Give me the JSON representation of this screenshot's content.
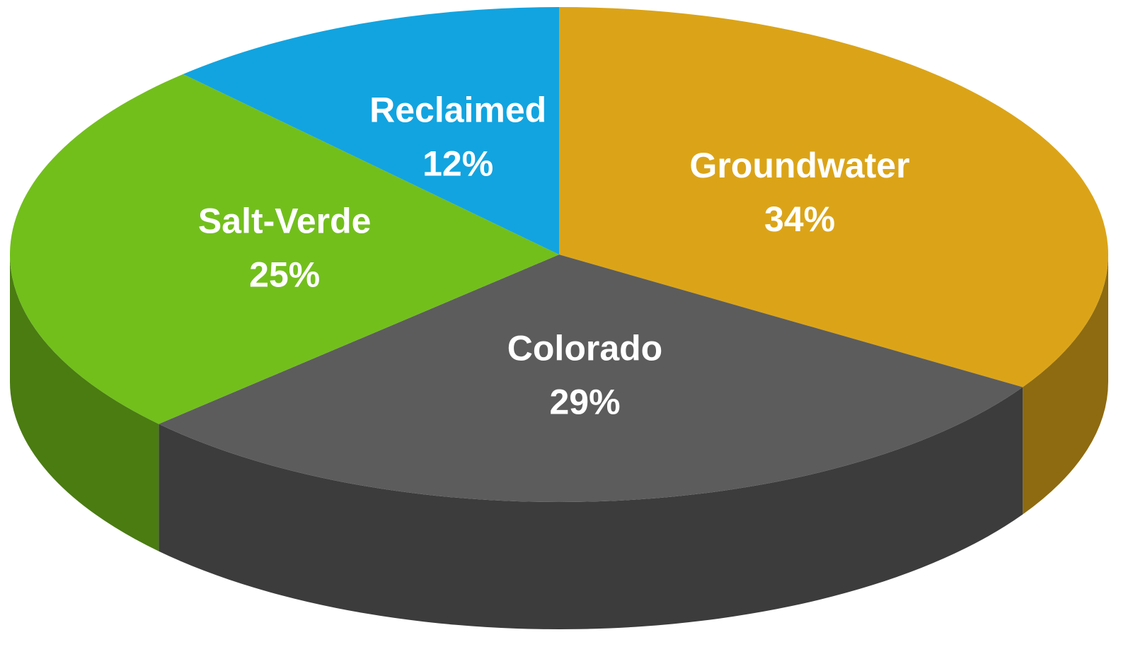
{
  "chart_data": {
    "type": "pie",
    "categories": [
      "Groundwater",
      "Colorado",
      "Salt-Verde",
      "Reclaimed"
    ],
    "values": [
      34,
      29,
      25,
      12
    ],
    "value_labels": [
      "34%",
      "29%",
      "25%",
      "12%"
    ],
    "colors": [
      "#dba418",
      "#5c5c5c",
      "#72bf1c",
      "#12a4e0"
    ]
  }
}
